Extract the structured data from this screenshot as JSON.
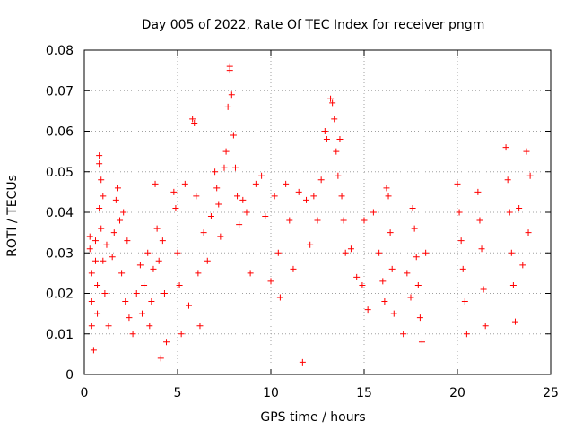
{
  "chart_data": {
    "type": "scatter",
    "title": "Day 005 of 2022, Rate Of TEC Index for receiver pngm",
    "xlabel": "GPS time / hours",
    "ylabel": "ROTI / TECUs",
    "xlim": [
      0,
      25
    ],
    "ylim": [
      0,
      0.08
    ],
    "xticks": [
      0,
      5,
      10,
      15,
      20,
      25
    ],
    "xtick_labels": [
      "0",
      "5",
      "10",
      "15",
      "20",
      "25"
    ],
    "yticks": [
      0,
      0.01,
      0.02,
      0.03,
      0.04,
      0.05,
      0.06,
      0.07,
      0.08
    ],
    "ytick_labels": [
      "0",
      "0.01",
      "0.02",
      "0.03",
      "0.04",
      "0.05",
      "0.06",
      "0.07",
      "0.08"
    ],
    "grid": true,
    "marker": "plus",
    "color": "#ff0000",
    "series": [
      {
        "name": "ROTI",
        "points": [
          [
            0.3,
            0.034
          ],
          [
            0.3,
            0.031
          ],
          [
            0.4,
            0.025
          ],
          [
            0.4,
            0.018
          ],
          [
            0.4,
            0.012
          ],
          [
            0.5,
            0.006
          ],
          [
            0.6,
            0.033
          ],
          [
            0.6,
            0.028
          ],
          [
            0.7,
            0.022
          ],
          [
            0.7,
            0.015
          ],
          [
            0.8,
            0.054
          ],
          [
            0.8,
            0.052
          ],
          [
            0.8,
            0.041
          ],
          [
            0.9,
            0.048
          ],
          [
            0.9,
            0.036
          ],
          [
            1.0,
            0.044
          ],
          [
            1.0,
            0.028
          ],
          [
            1.1,
            0.02
          ],
          [
            1.2,
            0.032
          ],
          [
            1.3,
            0.012
          ],
          [
            1.5,
            0.029
          ],
          [
            1.6,
            0.035
          ],
          [
            1.7,
            0.043
          ],
          [
            1.8,
            0.046
          ],
          [
            1.9,
            0.038
          ],
          [
            2.0,
            0.025
          ],
          [
            2.1,
            0.04
          ],
          [
            2.2,
            0.018
          ],
          [
            2.3,
            0.033
          ],
          [
            2.4,
            0.014
          ],
          [
            2.6,
            0.01
          ],
          [
            2.8,
            0.02
          ],
          [
            3.0,
            0.027
          ],
          [
            3.1,
            0.015
          ],
          [
            3.2,
            0.022
          ],
          [
            3.4,
            0.03
          ],
          [
            3.5,
            0.012
          ],
          [
            3.6,
            0.018
          ],
          [
            3.7,
            0.026
          ],
          [
            3.8,
            0.047
          ],
          [
            3.9,
            0.036
          ],
          [
            4.0,
            0.028
          ],
          [
            4.1,
            0.004
          ],
          [
            4.2,
            0.033
          ],
          [
            4.3,
            0.02
          ],
          [
            4.4,
            0.008
          ],
          [
            4.8,
            0.045
          ],
          [
            4.9,
            0.041
          ],
          [
            5.0,
            0.03
          ],
          [
            5.1,
            0.022
          ],
          [
            5.2,
            0.01
          ],
          [
            5.4,
            0.047
          ],
          [
            5.6,
            0.017
          ],
          [
            5.8,
            0.063
          ],
          [
            5.9,
            0.062
          ],
          [
            6.0,
            0.044
          ],
          [
            6.1,
            0.025
          ],
          [
            6.2,
            0.012
          ],
          [
            6.4,
            0.035
          ],
          [
            6.6,
            0.028
          ],
          [
            6.8,
            0.039
          ],
          [
            7.0,
            0.05
          ],
          [
            7.1,
            0.046
          ],
          [
            7.2,
            0.042
          ],
          [
            7.3,
            0.034
          ],
          [
            7.5,
            0.051
          ],
          [
            7.6,
            0.055
          ],
          [
            7.7,
            0.066
          ],
          [
            7.8,
            0.076
          ],
          [
            7.8,
            0.075
          ],
          [
            7.9,
            0.069
          ],
          [
            8.0,
            0.059
          ],
          [
            8.1,
            0.051
          ],
          [
            8.2,
            0.044
          ],
          [
            8.3,
            0.037
          ],
          [
            8.5,
            0.043
          ],
          [
            8.7,
            0.04
          ],
          [
            8.9,
            0.025
          ],
          [
            9.2,
            0.047
          ],
          [
            9.5,
            0.049
          ],
          [
            9.7,
            0.039
          ],
          [
            10.0,
            0.023
          ],
          [
            10.2,
            0.044
          ],
          [
            10.4,
            0.03
          ],
          [
            10.5,
            0.019
          ],
          [
            10.8,
            0.047
          ],
          [
            11.0,
            0.038
          ],
          [
            11.2,
            0.026
          ],
          [
            11.5,
            0.045
          ],
          [
            11.7,
            0.003
          ],
          [
            11.9,
            0.043
          ],
          [
            12.1,
            0.032
          ],
          [
            12.3,
            0.044
          ],
          [
            12.5,
            0.038
          ],
          [
            12.7,
            0.048
          ],
          [
            12.9,
            0.06
          ],
          [
            13.0,
            0.058
          ],
          [
            13.2,
            0.068
          ],
          [
            13.3,
            0.067
          ],
          [
            13.4,
            0.063
          ],
          [
            13.5,
            0.055
          ],
          [
            13.6,
            0.049
          ],
          [
            13.7,
            0.058
          ],
          [
            13.8,
            0.044
          ],
          [
            13.9,
            0.038
          ],
          [
            14.0,
            0.03
          ],
          [
            14.3,
            0.031
          ],
          [
            14.6,
            0.024
          ],
          [
            14.9,
            0.022
          ],
          [
            15.0,
            0.038
          ],
          [
            15.2,
            0.016
          ],
          [
            15.5,
            0.04
          ],
          [
            15.8,
            0.03
          ],
          [
            16.0,
            0.023
          ],
          [
            16.1,
            0.018
          ],
          [
            16.2,
            0.046
          ],
          [
            16.3,
            0.044
          ],
          [
            16.4,
            0.035
          ],
          [
            16.5,
            0.026
          ],
          [
            16.6,
            0.015
          ],
          [
            17.1,
            0.01
          ],
          [
            17.3,
            0.025
          ],
          [
            17.5,
            0.019
          ],
          [
            17.6,
            0.041
          ],
          [
            17.7,
            0.036
          ],
          [
            17.8,
            0.029
          ],
          [
            17.9,
            0.022
          ],
          [
            18.0,
            0.014
          ],
          [
            18.1,
            0.008
          ],
          [
            18.3,
            0.03
          ],
          [
            20.0,
            0.047
          ],
          [
            20.1,
            0.04
          ],
          [
            20.2,
            0.033
          ],
          [
            20.3,
            0.026
          ],
          [
            20.4,
            0.018
          ],
          [
            20.5,
            0.01
          ],
          [
            21.1,
            0.045
          ],
          [
            21.2,
            0.038
          ],
          [
            21.3,
            0.031
          ],
          [
            21.4,
            0.021
          ],
          [
            21.5,
            0.012
          ],
          [
            22.6,
            0.056
          ],
          [
            22.7,
            0.048
          ],
          [
            22.8,
            0.04
          ],
          [
            22.9,
            0.03
          ],
          [
            23.0,
            0.022
          ],
          [
            23.1,
            0.013
          ],
          [
            23.3,
            0.041
          ],
          [
            23.5,
            0.027
          ],
          [
            23.7,
            0.055
          ],
          [
            23.8,
            0.035
          ],
          [
            23.9,
            0.049
          ]
        ]
      }
    ]
  }
}
